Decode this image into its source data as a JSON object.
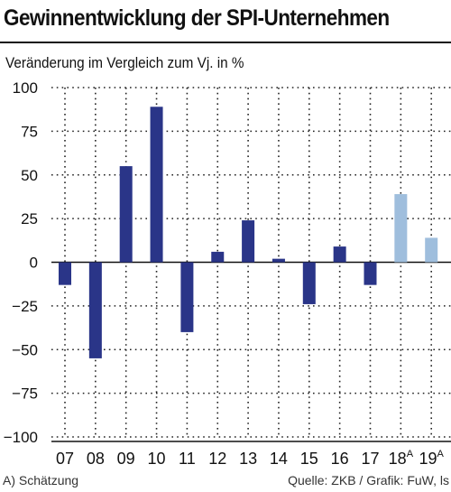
{
  "title": "Gewinnentwicklung der SPI-Unternehmen",
  "subtitle": "Veränderung im Vergleich zum Vj. in %",
  "footnote_left": "A) Schätzung",
  "footnote_right": "Quelle: ZKB / Grafik: FuW, ls",
  "colors": {
    "actual": "#2a3588",
    "estimate": "#9fbedd",
    "grid": "#222222"
  },
  "chart_data": {
    "type": "bar",
    "categories": [
      "07",
      "08",
      "09",
      "10",
      "11",
      "12",
      "13",
      "14",
      "15",
      "16",
      "17",
      "18",
      "19"
    ],
    "category_superscripts": [
      "",
      "",
      "",
      "",
      "",
      "",
      "",
      "",
      "",
      "",
      "",
      "A",
      "A"
    ],
    "values": [
      -13,
      -55,
      55,
      89,
      -40,
      6,
      24,
      2,
      -24,
      9,
      -13,
      39,
      14
    ],
    "estimate": [
      false,
      false,
      false,
      false,
      false,
      false,
      false,
      false,
      false,
      false,
      false,
      true,
      true
    ],
    "ylim": [
      -100,
      100
    ],
    "yticks": [
      100,
      75,
      50,
      25,
      0,
      -25,
      -50,
      -75,
      -100
    ],
    "grid": true
  }
}
